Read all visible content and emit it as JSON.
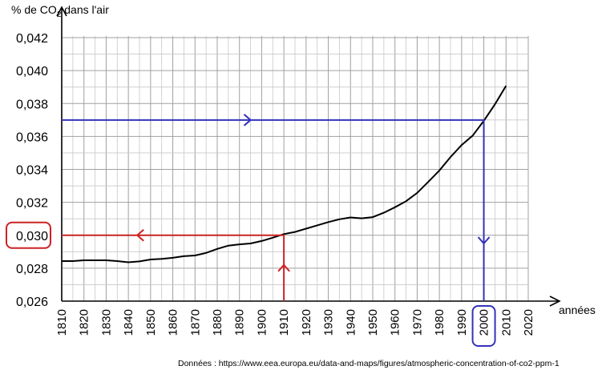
{
  "chart_data": {
    "type": "line",
    "title": "",
    "ylabel_prefix": "% de CO",
    "ylabel_subscript": "2",
    "ylabel_suffix": " dans l'air",
    "xlabel": "années",
    "xlim": [
      1810,
      2020
    ],
    "ylim": [
      0.026,
      0.042
    ],
    "grid": true,
    "x_ticks": [
      "1810",
      "1820",
      "1830",
      "1840",
      "1850",
      "1860",
      "1870",
      "1880",
      "1890",
      "1900",
      "1910",
      "1920",
      "1930",
      "1940",
      "1950",
      "1960",
      "1970",
      "1980",
      "1990",
      "2000",
      "2010",
      "2020"
    ],
    "y_ticks": [
      "0,026",
      "0,028",
      "0,030",
      "0,032",
      "0,034",
      "0,036",
      "0,038",
      "0,040",
      "0,042"
    ],
    "series": [
      {
        "color": "#000000",
        "x": [
          1810,
          1815,
          1820,
          1825,
          1830,
          1835,
          1840,
          1845,
          1850,
          1855,
          1860,
          1865,
          1870,
          1875,
          1880,
          1885,
          1890,
          1895,
          1900,
          1905,
          1910,
          1915,
          1920,
          1925,
          1930,
          1935,
          1940,
          1945,
          1950,
          1955,
          1960,
          1965,
          1970,
          1975,
          1980,
          1985,
          1990,
          1995,
          2000,
          2005,
          2010
        ],
        "y": [
          0.02843,
          0.02843,
          0.02848,
          0.02848,
          0.02848,
          0.02843,
          0.02836,
          0.02841,
          0.02853,
          0.02857,
          0.02863,
          0.02873,
          0.02877,
          0.02893,
          0.02917,
          0.02937,
          0.02945,
          0.0295,
          0.02965,
          0.02985,
          0.03007,
          0.0302,
          0.0304,
          0.0306,
          0.0308,
          0.03097,
          0.03108,
          0.03103,
          0.0311,
          0.03137,
          0.0317,
          0.03207,
          0.03257,
          0.03324,
          0.03393,
          0.03475,
          0.03548,
          0.03605,
          0.03695,
          0.03795,
          0.03907
        ]
      }
    ],
    "annotations": [
      {
        "color": "#3333bb",
        "description": "lecture 0,037 → 2000",
        "from_y": 0.037,
        "at_x": 2000
      },
      {
        "color": "#cc2222",
        "description": "lecture 1910 → 0,030",
        "from_x": 1910,
        "at_y": 0.03
      }
    ],
    "highlighted_y_tick": "0,030",
    "highlighted_x_tick": "2000",
    "source": "Données : https://www.eea.europa.eu/data-and-maps/figures/atmospheric-concentration-of-co2-ppm-1",
    "colors": {
      "blue": "#3333bb",
      "red": "#cc2222",
      "grid": "#a0a0a0",
      "curve": "#000000"
    }
  }
}
